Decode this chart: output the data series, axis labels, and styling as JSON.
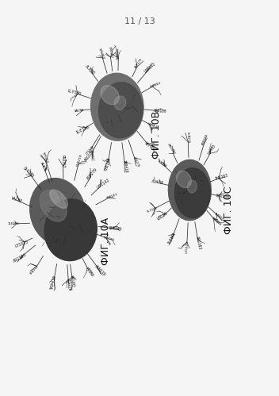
{
  "page_number": "11 / 13",
  "background_color": "#f5f5f5",
  "fig_labels": [
    "ФИГ. 10A",
    "ФИГ. 10B",
    "ФИГ. 10C"
  ],
  "page_number_fontsize": 8,
  "fig_label_fontsize": 9,
  "positions": {
    "10A": [
      0.23,
      0.44
    ],
    "10B": [
      0.42,
      0.73
    ],
    "10C": [
      0.68,
      0.52
    ]
  },
  "label_positions": {
    "10A": [
      0.38,
      0.39
    ],
    "10B": [
      0.56,
      0.66
    ],
    "10C": [
      0.82,
      0.47
    ]
  },
  "blob_sizes": {
    "10A": [
      0.13,
      0.115
    ],
    "10B": [
      0.105,
      0.1
    ],
    "10C": [
      0.085,
      0.09
    ]
  }
}
